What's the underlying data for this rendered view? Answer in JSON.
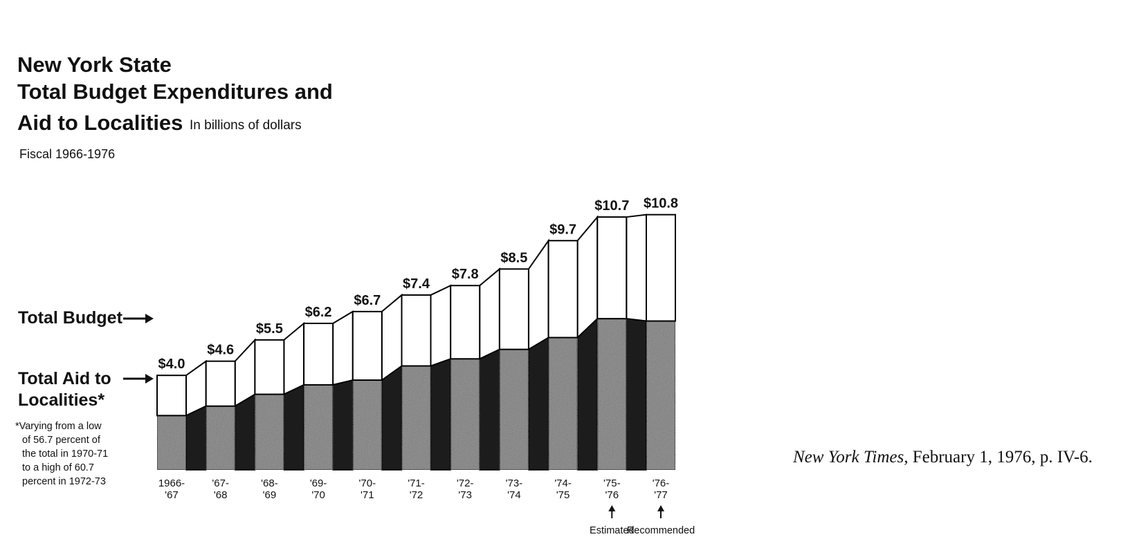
{
  "chart_data": {
    "type": "bar",
    "title_lines": [
      "New York State",
      "Total Budget Expenditures and",
      "Aid to Localities"
    ],
    "unit_note": "In billions of dollars",
    "subtitle": "Fiscal 1966-1976",
    "categories": [
      [
        "1966-",
        "'67"
      ],
      [
        "'67-",
        "'68"
      ],
      [
        "'68-",
        "'69"
      ],
      [
        "'69-",
        "'70"
      ],
      [
        "'70-",
        "'71"
      ],
      [
        "'71-",
        "'72"
      ],
      [
        "'72-",
        "'73"
      ],
      [
        "'73-",
        "'74"
      ],
      [
        "'74-",
        "'75"
      ],
      [
        "'75-",
        "'76"
      ],
      [
        "'76-",
        "'77"
      ]
    ],
    "value_labels": [
      "$4.0",
      "$4.6",
      "$5.5",
      "$6.2",
      "$6.7",
      "$7.4",
      "$7.8",
      "$8.5",
      "$9.7",
      "$10.7",
      "$10.8"
    ],
    "series": [
      {
        "name": "Total Budget",
        "values": [
          4.0,
          4.6,
          5.5,
          6.2,
          6.7,
          7.4,
          7.8,
          8.5,
          9.7,
          10.7,
          10.8
        ]
      },
      {
        "name": "Total Aid to Localities*",
        "values": [
          2.3,
          2.7,
          3.2,
          3.6,
          3.8,
          4.4,
          4.7,
          5.1,
          5.6,
          6.4,
          6.3
        ]
      }
    ],
    "ylim": [
      0,
      11
    ],
    "grid": false,
    "legend": [
      {
        "label": "Total Budget",
        "placement": "left"
      },
      {
        "label_lines": [
          "Total Aid to",
          "Localities*"
        ],
        "placement": "left"
      }
    ],
    "footnote_lines": [
      "*Varying from a low",
      "of 56.7 percent of",
      "the total in 1970-71",
      "to a high of 60.7",
      "percent in 1972-73"
    ],
    "annotations": [
      {
        "category_index": 9,
        "text": "Estimated"
      },
      {
        "category_index": 10,
        "text": "Recommended"
      }
    ],
    "colors": {
      "aid_front": "#7d7d7d",
      "aid_side": "#1c1c1c",
      "budget_front": "#ffffff",
      "outline": "#000000"
    }
  },
  "citation": {
    "source_italic": "New York Times,",
    "rest": " February 1, 1976, p. IV-6."
  }
}
